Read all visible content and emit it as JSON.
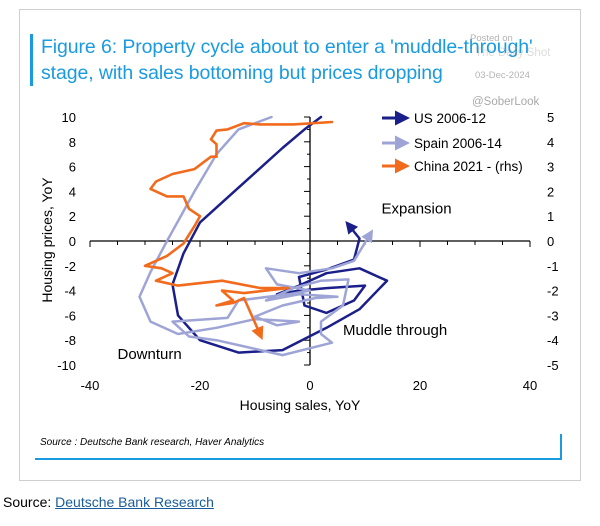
{
  "figure": {
    "title": "Figure 6: Property cycle about to enter a 'muddle-through' stage, with sales bottoming but prices dropping",
    "source_note": "Source : Deutsche Bank research, Haver Analytics"
  },
  "watermark": {
    "posted": "Posted on",
    "site": "The Daily Shot",
    "date": "03-Dec-2024",
    "handle": "@SoberLook"
  },
  "footer": {
    "prefix": "Source: ",
    "link_text": "Deutsche Bank Research"
  },
  "colors": {
    "accent": "#1a9be0",
    "us": "#1b1f8a",
    "spain": "#9ea5d6",
    "china": "#f26b1d"
  },
  "chart_data": {
    "type": "line",
    "xlabel": "Housing sales, YoY",
    "ylabel": "Housing prices, YoY",
    "xlim": [
      -40,
      40
    ],
    "ylim": [
      -10,
      10
    ],
    "y2lim": [
      -5,
      5
    ],
    "x_ticks": [
      -40,
      -20,
      0,
      20,
      40
    ],
    "y_ticks": [
      10,
      8,
      6,
      4,
      2,
      0,
      -2,
      -4,
      -6,
      -8,
      -10
    ],
    "y2_ticks": [
      5,
      4,
      3,
      2,
      1,
      0,
      -1,
      -2,
      -3,
      -4,
      -5
    ],
    "annotations": [
      {
        "text": "Expansion",
        "x": 13,
        "y": 2.2
      },
      {
        "text": "Muddle through",
        "x": 6,
        "y": -7.6
      },
      {
        "text": "Downturn",
        "x": -35,
        "y": -9.5
      }
    ],
    "series": [
      {
        "name": "US 2006-12",
        "axis": "left",
        "color": "#1b1f8a",
        "points": [
          [
            2,
            10
          ],
          [
            -1,
            9
          ],
          [
            -5,
            7.5
          ],
          [
            -10,
            5.5
          ],
          [
            -15,
            3.5
          ],
          [
            -20,
            1.5
          ],
          [
            -23,
            -1
          ],
          [
            -25,
            -3.5
          ],
          [
            -24,
            -6
          ],
          [
            -20,
            -8
          ],
          [
            -13,
            -9
          ],
          [
            -5,
            -8.8
          ],
          [
            3,
            -7
          ],
          [
            9,
            -5.5
          ],
          [
            14,
            -3.2
          ],
          [
            9,
            -2.2
          ],
          [
            3,
            -2.6
          ],
          [
            -2,
            -3.6
          ],
          [
            -6,
            -4.3
          ],
          [
            -2,
            -4
          ],
          [
            3,
            -3.8
          ],
          [
            10,
            -3.6
          ],
          [
            8,
            -4.8
          ],
          [
            3,
            -5.8
          ],
          [
            -1,
            -5.2
          ],
          [
            -2,
            -2.9
          ],
          [
            3,
            -2.3
          ],
          [
            8,
            -1.5
          ],
          [
            9,
            0.2
          ],
          [
            7,
            1.3
          ]
        ]
      },
      {
        "name": "Spain 2006-14",
        "axis": "left",
        "color": "#9ea5d6",
        "points": [
          [
            -7,
            10
          ],
          [
            -13,
            9
          ],
          [
            -17,
            7
          ],
          [
            -21,
            4
          ],
          [
            -26,
            0
          ],
          [
            -29,
            -2.5
          ],
          [
            -31,
            -4.5
          ],
          [
            -29,
            -6.5
          ],
          [
            -24,
            -7.5
          ],
          [
            -17,
            -7
          ],
          [
            -10,
            -6.3
          ],
          [
            -2,
            -6.5
          ],
          [
            -6,
            -6.8
          ],
          [
            -10,
            -6.1
          ],
          [
            -5,
            -5.2
          ],
          [
            1,
            -4.6
          ],
          [
            5,
            -4.5
          ],
          [
            -2,
            -4.3
          ],
          [
            -8,
            -4.8
          ],
          [
            -3,
            -3.8
          ],
          [
            2,
            -3.2
          ],
          [
            7,
            -3.1
          ],
          [
            6,
            -5.2
          ],
          [
            2,
            -6.5
          ],
          [
            2,
            -7.5
          ],
          [
            4,
            -8.2
          ],
          [
            -5,
            -9.2
          ],
          [
            -12,
            -8.5
          ],
          [
            -17,
            -8
          ],
          [
            -22,
            -7.7
          ],
          [
            -25,
            -6.5
          ],
          [
            -15,
            -6.2
          ],
          [
            -13,
            -4.8
          ],
          [
            -4,
            -4.3
          ],
          [
            0,
            -4
          ],
          [
            -6,
            -3.5
          ],
          [
            -8,
            -2.2
          ],
          [
            -2,
            -2.6
          ],
          [
            4,
            -2.2
          ],
          [
            8,
            -1.6
          ],
          [
            11,
            0.6
          ]
        ]
      },
      {
        "name": "China 2021 - (rhs)",
        "axis": "right",
        "color": "#f26b1d",
        "points": [
          [
            4,
            4.8
          ],
          [
            -3,
            4.7
          ],
          [
            -9,
            4.7
          ],
          [
            -12,
            4.75
          ],
          [
            -15,
            4.5
          ],
          [
            -17,
            4.45
          ],
          [
            -18,
            4.1
          ],
          [
            -17,
            3.9
          ],
          [
            -17,
            3.4
          ],
          [
            -18,
            3.4
          ],
          [
            -21,
            2.9
          ],
          [
            -25,
            2.7
          ],
          [
            -28,
            2.4
          ],
          [
            -29,
            2.1
          ],
          [
            -26,
            1.8
          ],
          [
            -23,
            1.8
          ],
          [
            -22,
            1.3
          ],
          [
            -20,
            1
          ],
          [
            -21,
            0.6
          ],
          [
            -23,
            -0.1
          ],
          [
            -26,
            -0.6
          ],
          [
            -30,
            -1
          ],
          [
            -27,
            -1.1
          ],
          [
            -25,
            -1.3
          ],
          [
            -28,
            -1.6
          ],
          [
            -24,
            -1.8
          ],
          [
            -16,
            -1.6
          ],
          [
            -9,
            -1.9
          ],
          [
            -4,
            -1.9
          ],
          [
            -12,
            -2.1
          ],
          [
            -16,
            -2
          ],
          [
            -14,
            -2.4
          ],
          [
            -17,
            -2.6
          ],
          [
            -14,
            -2.5
          ],
          [
            -12,
            -2.3
          ],
          [
            -9,
            -3.8
          ]
        ]
      }
    ]
  }
}
